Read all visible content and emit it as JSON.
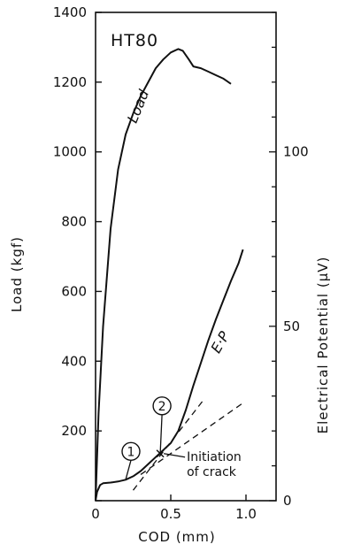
{
  "chart_data": {
    "type": "line",
    "panel_label": "HT80",
    "xlabel": "COD (mm)",
    "ylabel_left": "Load (kgf)",
    "ylabel_right": "Electrical Potential (μV)",
    "xlim": [
      0,
      1.2
    ],
    "ylim_left": [
      0,
      1400
    ],
    "ylim_right": [
      0,
      140
    ],
    "grid": false,
    "x_ticks": [
      {
        "value": 0,
        "label": "0"
      },
      {
        "value": 0.5,
        "label": "0.5"
      },
      {
        "value": 1.0,
        "label": "1.0"
      }
    ],
    "y_left_ticks": [
      {
        "value": 0,
        "label": ""
      },
      {
        "value": 200,
        "label": "200"
      },
      {
        "value": 400,
        "label": "400"
      },
      {
        "value": 600,
        "label": "600"
      },
      {
        "value": 800,
        "label": "800"
      },
      {
        "value": 1000,
        "label": "1000"
      },
      {
        "value": 1200,
        "label": "1200"
      },
      {
        "value": 1400,
        "label": "1400"
      }
    ],
    "y_right_ticks": [
      {
        "value": 0,
        "label": "0"
      },
      {
        "value": 50,
        "label": "50"
      },
      {
        "value": 100,
        "label": "100"
      }
    ],
    "series": [
      {
        "name": "Load",
        "axis": "left",
        "x": [
          0,
          0.02,
          0.05,
          0.1,
          0.15,
          0.2,
          0.25,
          0.3,
          0.35,
          0.4,
          0.45,
          0.5,
          0.55,
          0.58,
          0.62,
          0.65,
          0.7,
          0.75,
          0.8,
          0.85,
          0.9
        ],
        "y": [
          0,
          250,
          500,
          780,
          950,
          1050,
          1110,
          1160,
          1200,
          1240,
          1265,
          1285,
          1295,
          1290,
          1265,
          1245,
          1240,
          1230,
          1220,
          1210,
          1195
        ]
      },
      {
        "name": "E·P",
        "axis": "right",
        "x": [
          0,
          0.01,
          0.03,
          0.05,
          0.1,
          0.15,
          0.2,
          0.25,
          0.3,
          0.35,
          0.4,
          0.45,
          0.5,
          0.55,
          0.6,
          0.65,
          0.7,
          0.75,
          0.8,
          0.85,
          0.9,
          0.95,
          0.98
        ],
        "y": [
          0,
          2.5,
          4.5,
          5,
          5.2,
          5.5,
          6,
          7,
          8.5,
          10.5,
          12.5,
          14.5,
          16.5,
          20,
          26,
          33,
          39.5,
          46,
          52,
          57.5,
          63,
          68,
          72
        ]
      }
    ],
    "guide_lines": [
      {
        "x": [
          0.25,
          0.72
        ],
        "y": [
          3,
          29
        ]
      },
      {
        "x": [
          0.3,
          0.98
        ],
        "y": [
          7.5,
          28
        ]
      }
    ],
    "annotations": [
      {
        "id": "marker-1",
        "text": "1",
        "x": 0.2,
        "y": 6
      },
      {
        "id": "marker-2",
        "text": "2",
        "x": 0.43,
        "y": 13.5
      },
      {
        "id": "crack",
        "text_lines": [
          "Initiation",
          "of crack"
        ],
        "x": 0.43,
        "y": 13.5
      }
    ]
  }
}
